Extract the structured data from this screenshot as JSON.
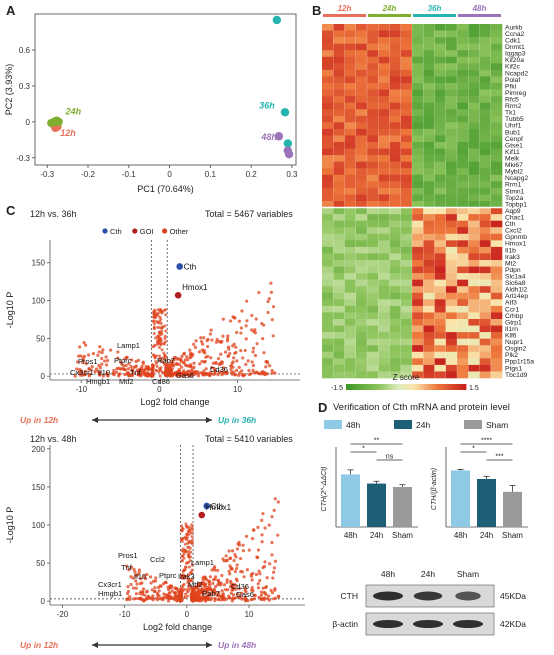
{
  "panel_letters": {
    "a": "A",
    "b": "B",
    "c": "C",
    "d": "D"
  },
  "colors": {
    "h12": "#e8705a",
    "h24": "#7fae2e",
    "h36": "#25b4ae",
    "h48": "#9b73b8",
    "other": "#e0431c",
    "goi": "#b21e1e",
    "cth": "#2a4fa8",
    "bar48": "#8ec9e6",
    "bar24": "#1e5f78",
    "barSham": "#9a9a9a"
  },
  "chart_data": [
    {
      "type": "scatter",
      "panel": "A",
      "xlabel": "PC1 (70.64%)",
      "ylabel": "PC2 (3.93%)",
      "xlim": [
        -0.33,
        0.31
      ],
      "ylim": [
        -0.36,
        0.9
      ],
      "xticks": [
        "-0.3",
        "-0.2",
        "-0.1",
        "0",
        "0.1",
        "0.2",
        "0.3"
      ],
      "yticks": [
        "-0.3",
        "0",
        "0.3",
        "0.6"
      ],
      "series": [
        {
          "name": "12h",
          "points": [
            [
              -0.285,
              -0.02
            ],
            [
              -0.28,
              -0.05
            ],
            [
              -0.275,
              -0.04
            ]
          ]
        },
        {
          "name": "24h",
          "points": [
            [
              -0.29,
              -0.01
            ],
            [
              -0.283,
              0.0
            ],
            [
              -0.277,
              0.01
            ],
            [
              -0.272,
              0.0
            ]
          ]
        },
        {
          "name": "36h",
          "points": [
            [
              0.263,
              0.85
            ],
            [
              0.283,
              0.08
            ],
            [
              0.29,
              -0.18
            ]
          ]
        },
        {
          "name": "48h",
          "points": [
            [
              0.268,
              -0.12
            ],
            [
              0.29,
              -0.24
            ],
            [
              0.293,
              -0.27
            ]
          ]
        }
      ]
    },
    {
      "type": "heatmap",
      "panel": "B",
      "columns": [
        "12h",
        "24h",
        "36h",
        "48h"
      ],
      "genes_top": [
        "Aurkb",
        "Ccna2",
        "Cdk1",
        "Dnmt1",
        "Iqgap3",
        "Kif20a",
        "Kif2c",
        "Ncapd2",
        "Polaf",
        "Pfkl",
        "Pimreg",
        "Rfc5",
        "Rrm2",
        "Tk1",
        "Tubb5",
        "Uhrf1",
        "Bub1",
        "Cenpf",
        "Gtse1",
        "Kif11",
        "Melk",
        "Mki67",
        "Mybl2",
        "Ncapg2",
        "Rrm1",
        "Stmn1",
        "Top2a",
        "Topbp1"
      ],
      "genes_bottom": [
        "Aqp9",
        "Chac1",
        "Cth",
        "Cxcl2",
        "Gpnmb",
        "Hmox1",
        "Il1b",
        "Irak3",
        "Mt2",
        "Pdpn",
        "Slc1a4",
        "Slc6a8",
        "Aldh1l2",
        "Arl14ep",
        "Atf3",
        "Ccr1",
        "Crhbp",
        "Gtrp1",
        "Il1rn",
        "Klf6",
        "Nupr1",
        "Osgin2",
        "Plk2",
        "Ppp1r15a",
        "Ptgs1",
        "Tbc1d9"
      ],
      "colorbar": {
        "title": "Z score",
        "ticks": [
          "-1.5",
          "0",
          "1.5"
        ]
      }
    },
    {
      "type": "scatter",
      "panel": "C-top",
      "title": "12h vs. 36h",
      "total": "Total = 5467 variables",
      "legend": [
        "Cth",
        "GOI",
        "Other"
      ],
      "xlabel": "Log2 fold change",
      "ylabel": "-Log10 P",
      "xlim": [
        -14,
        18
      ],
      "ylim": [
        -5,
        180
      ],
      "xticks": [
        "-10",
        "0",
        "10"
      ],
      "yticks": [
        "0",
        "50",
        "100",
        "150"
      ],
      "highlight": [
        {
          "label": "Cth",
          "x": 2.6,
          "y": 145,
          "kind": "Cth"
        },
        {
          "label": "Hmox1",
          "x": 2.4,
          "y": 107,
          "kind": "GOI"
        }
      ],
      "gene_labels": [
        "Pros1",
        "Lamp1",
        "Cx3cr1",
        "Il10",
        "Ptprc",
        "Hmgb1",
        "Tnf",
        "Mtf2",
        "Rab7",
        "Cd36",
        "Gas6",
        "Cd86"
      ],
      "bottom_left": "Up in 12h",
      "bottom_right": "Up in 36h"
    },
    {
      "type": "scatter",
      "panel": "C-bottom",
      "title": "12h vs. 48h",
      "total": "Total = 5410 variables",
      "xlabel": "Log2 fold change",
      "ylabel": "-Log10 P",
      "xlim": [
        -22,
        19
      ],
      "ylim": [
        -5,
        205
      ],
      "xticks": [
        "-20",
        "-10",
        "0",
        "10"
      ],
      "yticks": [
        "0",
        "50",
        "100",
        "150",
        "200"
      ],
      "highlight": [
        {
          "label": "Cth",
          "x": 3.2,
          "y": 125,
          "kind": "Cth"
        },
        {
          "label": "Hmox1",
          "x": 2.4,
          "y": 113,
          "kind": "GOI"
        }
      ],
      "gene_labels": [
        "Pros1",
        "Ccl2",
        "Lamp1",
        "Tnf",
        "Il10",
        "Ptprc",
        "Irak3",
        "Cx3cr1",
        "Mtf2",
        "Cd36",
        "Hmgb1",
        "Rab7",
        "Gas6"
      ],
      "bottom_left": "Up in 12h",
      "bottom_right": "Up in 48h"
    },
    {
      "type": "bar",
      "panel": "D-left",
      "ylabel": "CTH(2^-ΔΔCt)",
      "categories": [
        "48h",
        "24h",
        "Sham"
      ],
      "values": [
        0.92,
        0.76,
        0.7
      ],
      "errors": [
        0.08,
        0.04,
        0.04
      ],
      "ylim": [
        0,
        1.4
      ],
      "sig": [
        "**",
        "*",
        "ns"
      ]
    },
    {
      "type": "bar",
      "panel": "D-right",
      "ylabel": "CTH/(β-actin)",
      "categories": [
        "48h",
        "24h",
        "Sham"
      ],
      "values": [
        1.06,
        0.9,
        0.66
      ],
      "errors": [
        0.02,
        0.05,
        0.12
      ],
      "ylim": [
        0,
        1.5
      ],
      "sig": [
        "****",
        "*",
        "***"
      ]
    }
  ],
  "panel_d": {
    "title": "Verification of Cth mRNA and protein level",
    "legend": [
      "48h",
      "24h",
      "Sham"
    ],
    "blot_lanes": [
      "48h",
      "24h",
      "Sham"
    ],
    "blot_rows": [
      {
        "name": "CTH",
        "kda": "45KDa"
      },
      {
        "name": "β-actin",
        "kda": "42KDa"
      }
    ]
  }
}
